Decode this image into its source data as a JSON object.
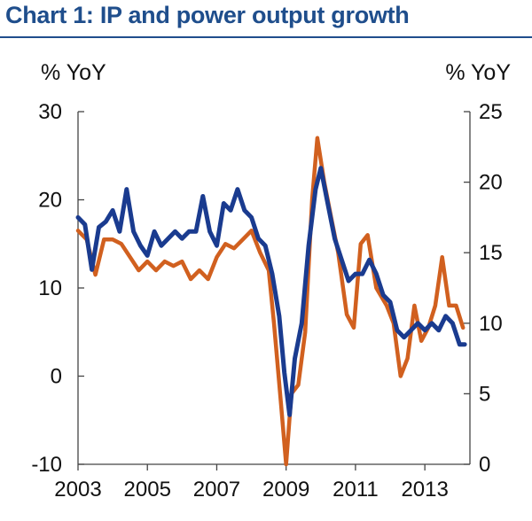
{
  "title": "Chart 1: IP and power output growth",
  "colors": {
    "title": "#1f4e8c",
    "rule": "#1f4e8c",
    "ip_series": "#1a3b8f",
    "power_series": "#d1601f",
    "axis": "#444444"
  },
  "chart_data": {
    "type": "line",
    "left_axis": {
      "label": "% YoY",
      "range": [
        -10,
        30
      ],
      "ticks": [
        "30",
        "20",
        "10",
        "0",
        "-10"
      ]
    },
    "right_axis": {
      "label": "% YoY",
      "range": [
        0,
        25
      ],
      "ticks": [
        "25",
        "20",
        "15",
        "10",
        "5",
        "0"
      ]
    },
    "x_axis": {
      "range": [
        2003,
        2014.3
      ],
      "ticks": [
        "2003",
        "2005",
        "2007",
        "2009",
        "2011",
        "2013"
      ]
    },
    "grid": false,
    "legend": "none",
    "series": [
      {
        "axis": "left",
        "color": "#d1601f",
        "points": [
          [
            2003.0,
            16.5
          ],
          [
            2003.25,
            15.5
          ],
          [
            2003.5,
            11.5
          ],
          [
            2003.75,
            15.5
          ],
          [
            2004.0,
            15.5
          ],
          [
            2004.25,
            15.0
          ],
          [
            2004.5,
            13.5
          ],
          [
            2004.75,
            12.0
          ],
          [
            2005.0,
            13.0
          ],
          [
            2005.25,
            12.0
          ],
          [
            2005.5,
            13.0
          ],
          [
            2005.75,
            12.5
          ],
          [
            2006.0,
            13.0
          ],
          [
            2006.25,
            11.0
          ],
          [
            2006.5,
            12.0
          ],
          [
            2006.75,
            11.0
          ],
          [
            2007.0,
            13.5
          ],
          [
            2007.25,
            15.0
          ],
          [
            2007.5,
            14.5
          ],
          [
            2007.75,
            15.5
          ],
          [
            2008.0,
            16.5
          ],
          [
            2008.25,
            14.0
          ],
          [
            2008.5,
            12.0
          ],
          [
            2008.65,
            6.0
          ],
          [
            2008.85,
            -3.0
          ],
          [
            2009.0,
            -10.0
          ],
          [
            2009.15,
            -2.0
          ],
          [
            2009.35,
            -1.0
          ],
          [
            2009.55,
            5.0
          ],
          [
            2009.75,
            20.0
          ],
          [
            2009.9,
            27.0
          ],
          [
            2010.1,
            22.0
          ],
          [
            2010.3,
            18.0
          ],
          [
            2010.5,
            14.0
          ],
          [
            2010.75,
            7.0
          ],
          [
            2010.95,
            5.5
          ],
          [
            2011.15,
            15.0
          ],
          [
            2011.35,
            16.0
          ],
          [
            2011.6,
            10.0
          ],
          [
            2011.9,
            8.0
          ],
          [
            2012.1,
            6.0
          ],
          [
            2012.3,
            0.0
          ],
          [
            2012.5,
            2.0
          ],
          [
            2012.7,
            8.0
          ],
          [
            2012.9,
            4.0
          ],
          [
            2013.1,
            5.5
          ],
          [
            2013.3,
            8.0
          ],
          [
            2013.5,
            13.5
          ],
          [
            2013.7,
            8.0
          ],
          [
            2013.9,
            8.0
          ],
          [
            2014.1,
            5.5
          ]
        ]
      },
      {
        "axis": "right",
        "color": "#1a3b8f",
        "points": [
          [
            2003.0,
            17.5
          ],
          [
            2003.2,
            17.0
          ],
          [
            2003.4,
            13.8
          ],
          [
            2003.6,
            16.8
          ],
          [
            2003.8,
            17.2
          ],
          [
            2004.0,
            18.0
          ],
          [
            2004.2,
            16.5
          ],
          [
            2004.4,
            19.5
          ],
          [
            2004.6,
            16.5
          ],
          [
            2004.8,
            15.5
          ],
          [
            2005.0,
            14.8
          ],
          [
            2005.2,
            16.5
          ],
          [
            2005.4,
            15.5
          ],
          [
            2005.6,
            16.0
          ],
          [
            2005.8,
            16.5
          ],
          [
            2006.0,
            16.0
          ],
          [
            2006.2,
            16.5
          ],
          [
            2006.4,
            16.5
          ],
          [
            2006.6,
            19.0
          ],
          [
            2006.8,
            16.5
          ],
          [
            2007.0,
            15.5
          ],
          [
            2007.2,
            18.5
          ],
          [
            2007.4,
            18.0
          ],
          [
            2007.6,
            19.5
          ],
          [
            2007.8,
            18.0
          ],
          [
            2008.0,
            17.5
          ],
          [
            2008.2,
            16.0
          ],
          [
            2008.4,
            15.5
          ],
          [
            2008.6,
            13.5
          ],
          [
            2008.8,
            10.5
          ],
          [
            2008.95,
            6.5
          ],
          [
            2009.1,
            3.5
          ],
          [
            2009.25,
            7.5
          ],
          [
            2009.45,
            10.0
          ],
          [
            2009.65,
            15.5
          ],
          [
            2009.85,
            19.5
          ],
          [
            2010.0,
            21.0
          ],
          [
            2010.2,
            18.5
          ],
          [
            2010.4,
            16.0
          ],
          [
            2010.6,
            14.5
          ],
          [
            2010.8,
            13.0
          ],
          [
            2011.0,
            13.5
          ],
          [
            2011.2,
            13.5
          ],
          [
            2011.4,
            14.5
          ],
          [
            2011.6,
            13.5
          ],
          [
            2011.8,
            12.0
          ],
          [
            2012.0,
            11.5
          ],
          [
            2012.2,
            9.5
          ],
          [
            2012.4,
            9.0
          ],
          [
            2012.6,
            9.5
          ],
          [
            2012.8,
            10.0
          ],
          [
            2013.0,
            9.5
          ],
          [
            2013.2,
            10.0
          ],
          [
            2013.4,
            9.5
          ],
          [
            2013.6,
            10.5
          ],
          [
            2013.8,
            10.0
          ],
          [
            2014.0,
            8.5
          ],
          [
            2014.15,
            8.5
          ]
        ]
      }
    ]
  }
}
